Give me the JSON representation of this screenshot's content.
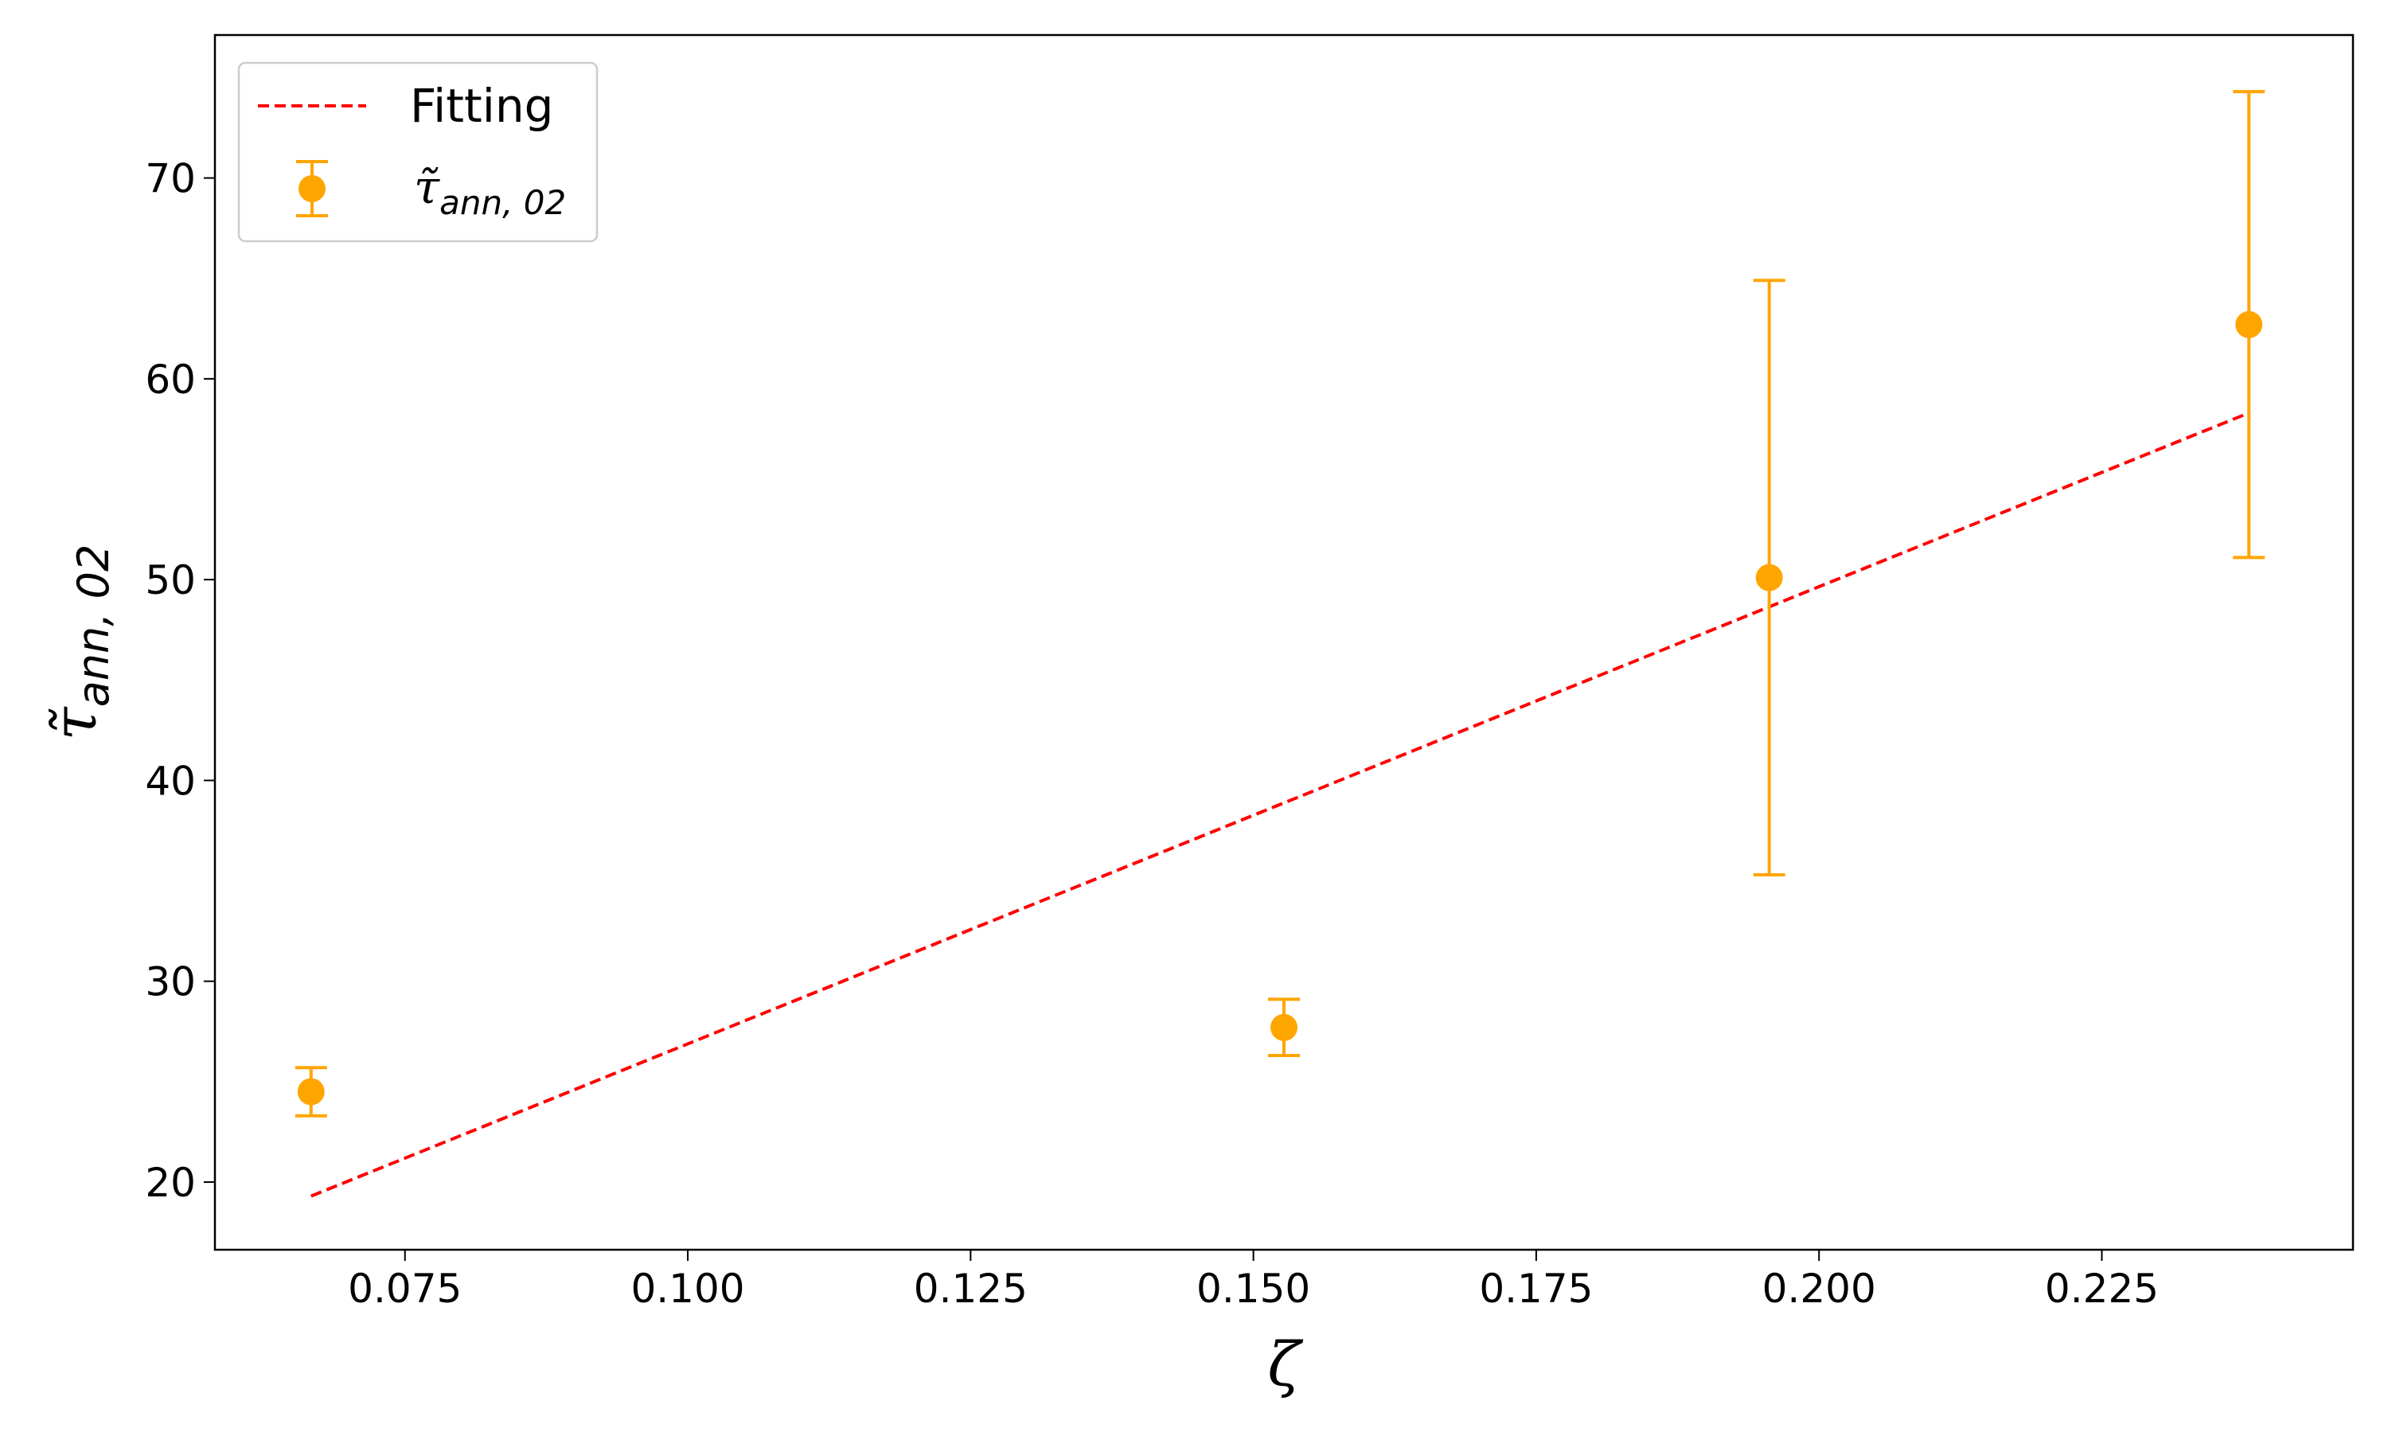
{
  "chart_data": {
    "type": "scatter",
    "xlabel": "ζ",
    "ylabel": {
      "main": "τ̃",
      "sub": "ann, 02"
    },
    "xlim": [
      0.0582,
      0.2472
    ],
    "ylim": [
      16.63,
      77.12
    ],
    "xticks": [
      0.075,
      {
        "value": 0.1,
        "label": "0.100"
      },
      0.125,
      {
        "value": 0.15,
        "label": "0.150"
      },
      0.175,
      {
        "value": 0.2,
        "label": "0.200"
      },
      0.225
    ],
    "yticks": [
      20,
      30,
      40,
      50,
      60,
      70
    ],
    "legend": "upper left",
    "series": [
      {
        "name": "Fitting",
        "type": "line",
        "color": "#ff0000",
        "dashed": true,
        "x": [
          0.0667,
          0.238
        ],
        "values": [
          19.3,
          58.3
        ]
      },
      {
        "name": {
          "main": "τ̃",
          "sub": "ann, 02"
        },
        "type": "scatter",
        "color": "#ffa500",
        "x": [
          0.0667,
          0.1527,
          0.1956,
          0.238
        ],
        "values": [
          24.5,
          27.7,
          50.1,
          62.7
        ],
        "errors": [
          1.2,
          1.4,
          14.8,
          11.6
        ]
      }
    ]
  }
}
